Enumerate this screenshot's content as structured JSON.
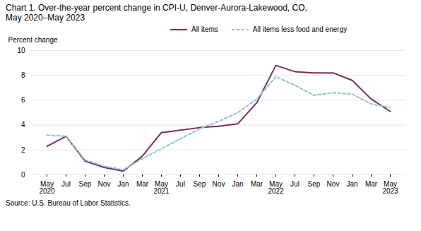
{
  "chart_data": {
    "type": "line",
    "title": "Chart 1. Over-the-year percent change in CPI-U, Denver-Aurora-Lakewood, CO,",
    "subtitle": "May 2020–May 2023",
    "y_label": "Percent change",
    "source": "Source: U.S. Bureau of Labor Statistics.",
    "categories": [
      "May\n2020",
      "Jul",
      "Sep",
      "Nov",
      "Jan",
      "Mar",
      "May\n2021",
      "Jul",
      "Sep",
      "Nov",
      "Jan",
      "Mar",
      "May\n2022",
      "Jul",
      "Sep",
      "Nov",
      "Jan",
      "Mar",
      "May\n2023"
    ],
    "series": [
      {
        "name": "All items",
        "color": "#7B2D5A",
        "line_style": "solid",
        "values": [
          2.3,
          3.1,
          1.1,
          0.6,
          0.3,
          1.5,
          3.4,
          3.6,
          3.8,
          3.9,
          4.1,
          5.8,
          8.8,
          8.3,
          8.2,
          8.2,
          7.6,
          6.1,
          5.1
        ]
      },
      {
        "name": "All items less food and energy",
        "color": "#92C0E0",
        "line_style": "dashed",
        "values": [
          3.2,
          3.1,
          1.2,
          0.7,
          0.4,
          1.3,
          2.1,
          2.9,
          3.7,
          4.3,
          5.0,
          6.1,
          7.9,
          7.2,
          6.4,
          6.6,
          6.5,
          5.7,
          5.4
        ]
      }
    ],
    "ylim": [
      0.0,
      10.0
    ],
    "yticks": [
      0.0,
      2.0,
      4.0,
      6.0,
      8.0,
      10.0
    ],
    "grid": true,
    "legend": "top"
  }
}
